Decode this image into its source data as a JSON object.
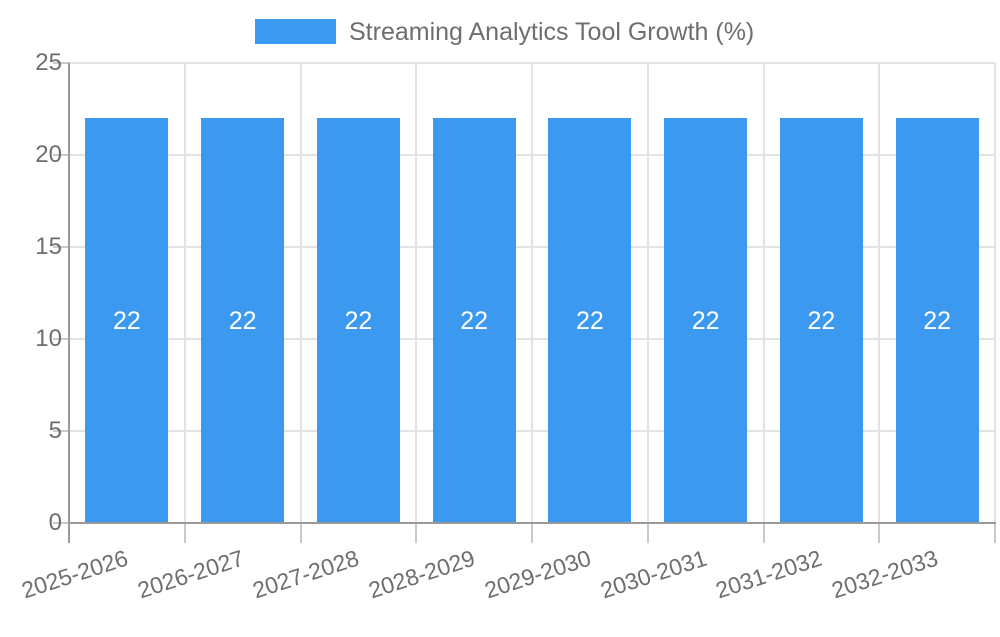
{
  "legend": {
    "label": "Streaming Analytics Tool Growth (%)"
  },
  "chart_data": {
    "type": "bar",
    "title": "Streaming Analytics Tool Growth (%)",
    "categories": [
      "2025-2026",
      "2026-2027",
      "2027-2028",
      "2028-2029",
      "2029-2030",
      "2030-2031",
      "2031-2032",
      "2032-2033"
    ],
    "values": [
      22,
      22,
      22,
      22,
      22,
      22,
      22,
      22
    ],
    "bar_labels": [
      "22",
      "22",
      "22",
      "22",
      "22",
      "22",
      "22",
      "22"
    ],
    "xlabel": "",
    "ylabel": "",
    "ylim": [
      0,
      25
    ],
    "yticks": [
      0,
      5,
      10,
      15,
      20,
      25
    ],
    "grid": true,
    "legend_position": "top"
  },
  "colors": {
    "bar": "#3b99f0",
    "grid": "#e3e3e3",
    "axis": "#9a9a9a",
    "tick": "#c9c9c9",
    "text": "#6e6e6e",
    "bar_label": "#ffffff",
    "background": "#ffffff"
  }
}
